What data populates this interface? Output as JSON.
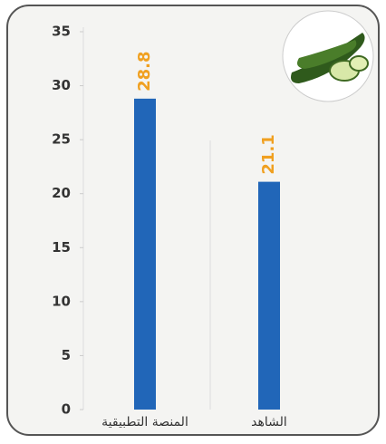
{
  "chart_data": {
    "type": "bar",
    "categories": [
      "المنصة التطبيقية",
      "الشاهد"
    ],
    "values": [
      28.8,
      21.1
    ],
    "color": "#2166b8",
    "value_label_color": "#f0a020",
    "ylim": [
      0,
      35
    ],
    "yticks": [
      0,
      5,
      10,
      15,
      20,
      25,
      30,
      35
    ]
  }
}
